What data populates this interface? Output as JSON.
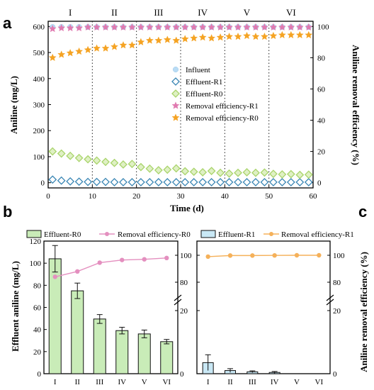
{
  "colors": {
    "influent": "#b9dcf5",
    "effluent_r1": "#3a86b4",
    "effluent_r0": "#a9d46b",
    "removal_r1": "#e07ab0",
    "removal_r0": "#f5a323",
    "bar_r0_fill": "#c9ecb8",
    "bar_r1_fill": "#c9e8f5",
    "line_r0": "#e48fbf",
    "line_r1": "#f5b15a"
  },
  "chart_data": [
    {
      "panel": "a",
      "type": "scatter",
      "xlabel": "Time (d)",
      "ylabel": "Aniline (mg/L)",
      "ylabel_right": "Aniline removal efficiency (%)",
      "xlim": [
        0,
        60
      ],
      "ylim": [
        -20,
        620
      ],
      "ylim_right": [
        -3.33,
        103.33
      ],
      "xticks": [
        0,
        10,
        20,
        30,
        40,
        50,
        60
      ],
      "yticks": [
        0,
        100,
        200,
        300,
        400,
        500,
        600
      ],
      "yticks_right": [
        0,
        20,
        40,
        60,
        80,
        100
      ],
      "stage_boundaries": [
        10,
        20,
        30,
        40,
        50
      ],
      "stage_labels": [
        "I",
        "II",
        "III",
        "IV",
        "V",
        "VI"
      ],
      "legend_position": "center-left",
      "series": [
        {
          "name": "Influent",
          "axis": "left",
          "marker": "circle",
          "x": [
            1,
            3,
            5,
            7,
            9,
            11,
            13,
            15,
            17,
            19,
            21,
            23,
            25,
            27,
            29,
            31,
            33,
            35,
            37,
            39,
            41,
            43,
            45,
            47,
            49,
            51,
            53,
            55,
            57,
            59
          ],
          "y": [
            598,
            598,
            598,
            598,
            598,
            598,
            598,
            598,
            598,
            598,
            598,
            598,
            598,
            598,
            598,
            598,
            598,
            598,
            598,
            598,
            598,
            598,
            598,
            598,
            598,
            598,
            598,
            598,
            598,
            598
          ]
        },
        {
          "name": "Effluent-R1",
          "axis": "left",
          "marker": "diamond",
          "x": [
            1,
            3,
            5,
            7,
            9,
            11,
            13,
            15,
            17,
            19,
            21,
            23,
            25,
            27,
            29,
            31,
            33,
            35,
            37,
            39,
            41,
            43,
            45,
            47,
            49,
            51,
            53,
            55,
            57,
            59
          ],
          "y": [
            12,
            8,
            5,
            4,
            3,
            3,
            3,
            2,
            2,
            2,
            2,
            2,
            2,
            2,
            2,
            2,
            2,
            2,
            2,
            2,
            2,
            2,
            2,
            2,
            2,
            2,
            2,
            2,
            2,
            2
          ]
        },
        {
          "name": "Effluent-R0",
          "axis": "left",
          "marker": "diamond",
          "x": [
            1,
            3,
            5,
            7,
            9,
            11,
            13,
            15,
            17,
            19,
            21,
            23,
            25,
            27,
            29,
            31,
            33,
            35,
            37,
            39,
            41,
            43,
            45,
            47,
            49,
            51,
            53,
            55,
            57,
            59
          ],
          "y": [
            120,
            112,
            103,
            95,
            90,
            85,
            80,
            76,
            70,
            72,
            60,
            54,
            48,
            50,
            55,
            44,
            42,
            40,
            45,
            38,
            35,
            38,
            40,
            38,
            39,
            34,
            32,
            33,
            30,
            31
          ]
        },
        {
          "name": "Removal efficiency-R1",
          "axis": "right",
          "marker": "star",
          "x": [
            1,
            3,
            5,
            7,
            9,
            11,
            13,
            15,
            17,
            19,
            21,
            23,
            25,
            27,
            29,
            31,
            33,
            35,
            37,
            39,
            41,
            43,
            45,
            47,
            49,
            51,
            53,
            55,
            57,
            59
          ],
          "y": [
            98.5,
            99,
            99,
            99,
            99.5,
            99.5,
            99.5,
            99.5,
            99.5,
            99.5,
            99.5,
            99.5,
            99.5,
            99.5,
            99.5,
            99.5,
            99.5,
            99.5,
            99.5,
            99.5,
            99.5,
            99.5,
            99.5,
            99.5,
            99.5,
            99.5,
            99.5,
            99.5,
            99.5,
            99.5
          ]
        },
        {
          "name": "Removal efficiency-R0",
          "axis": "right",
          "marker": "star",
          "x": [
            1,
            3,
            5,
            7,
            9,
            11,
            13,
            15,
            17,
            19,
            21,
            23,
            25,
            27,
            29,
            31,
            33,
            35,
            37,
            39,
            41,
            43,
            45,
            47,
            49,
            51,
            53,
            55,
            57,
            59
          ],
          "y": [
            80,
            82,
            83,
            84,
            85,
            86,
            86,
            87,
            88,
            88,
            90,
            91,
            91,
            91.5,
            91,
            92,
            92.5,
            93,
            92.5,
            93,
            93.5,
            93.5,
            94,
            93.5,
            93.5,
            94,
            94.5,
            94.5,
            94.5,
            94.5
          ]
        }
      ]
    },
    {
      "panel": "b",
      "type": "bar",
      "categories": [
        "I",
        "II",
        "III",
        "IV",
        "V",
        "VI"
      ],
      "ylabel": "Effluent aniline (mg/L)",
      "ylim": [
        0,
        120
      ],
      "yticks": [
        0,
        20,
        40,
        60,
        80,
        100,
        120
      ],
      "yticks_right": [
        "0",
        "20",
        "80",
        "100"
      ],
      "legend_position": "top",
      "series": [
        {
          "name": "Effluent-R0",
          "axis": "left",
          "values": [
            104,
            75,
            49.5,
            39,
            36,
            29
          ],
          "error": [
            12,
            7,
            4,
            3,
            3.5,
            2
          ]
        },
        {
          "name": "Removal efficiency-R0",
          "axis": "right",
          "values": [
            84,
            88,
            94.5,
            96.5,
            97,
            98
          ],
          "error": [
            1.5,
            1,
            0.4,
            0.3,
            0.3,
            0.2
          ]
        }
      ]
    },
    {
      "panel": "c",
      "type": "bar",
      "categories": [
        "I",
        "II",
        "III",
        "IV",
        "V",
        "VI"
      ],
      "ylabel": "Aniline removal efficiency (%)",
      "yticks": [
        "0",
        "20",
        "80",
        "100"
      ],
      "legend_position": "top",
      "series": [
        {
          "name": "Effluent-R1",
          "axis": "left",
          "values": [
            3.5,
            1.0,
            0.6,
            0.4,
            0,
            0
          ],
          "error": [
            2.5,
            0.6,
            0.3,
            0.3,
            0,
            0
          ]
        },
        {
          "name": "Removal efficiency-R1",
          "axis": "right",
          "values": [
            99,
            99.8,
            99.8,
            99.9,
            100,
            100
          ]
        }
      ]
    }
  ]
}
